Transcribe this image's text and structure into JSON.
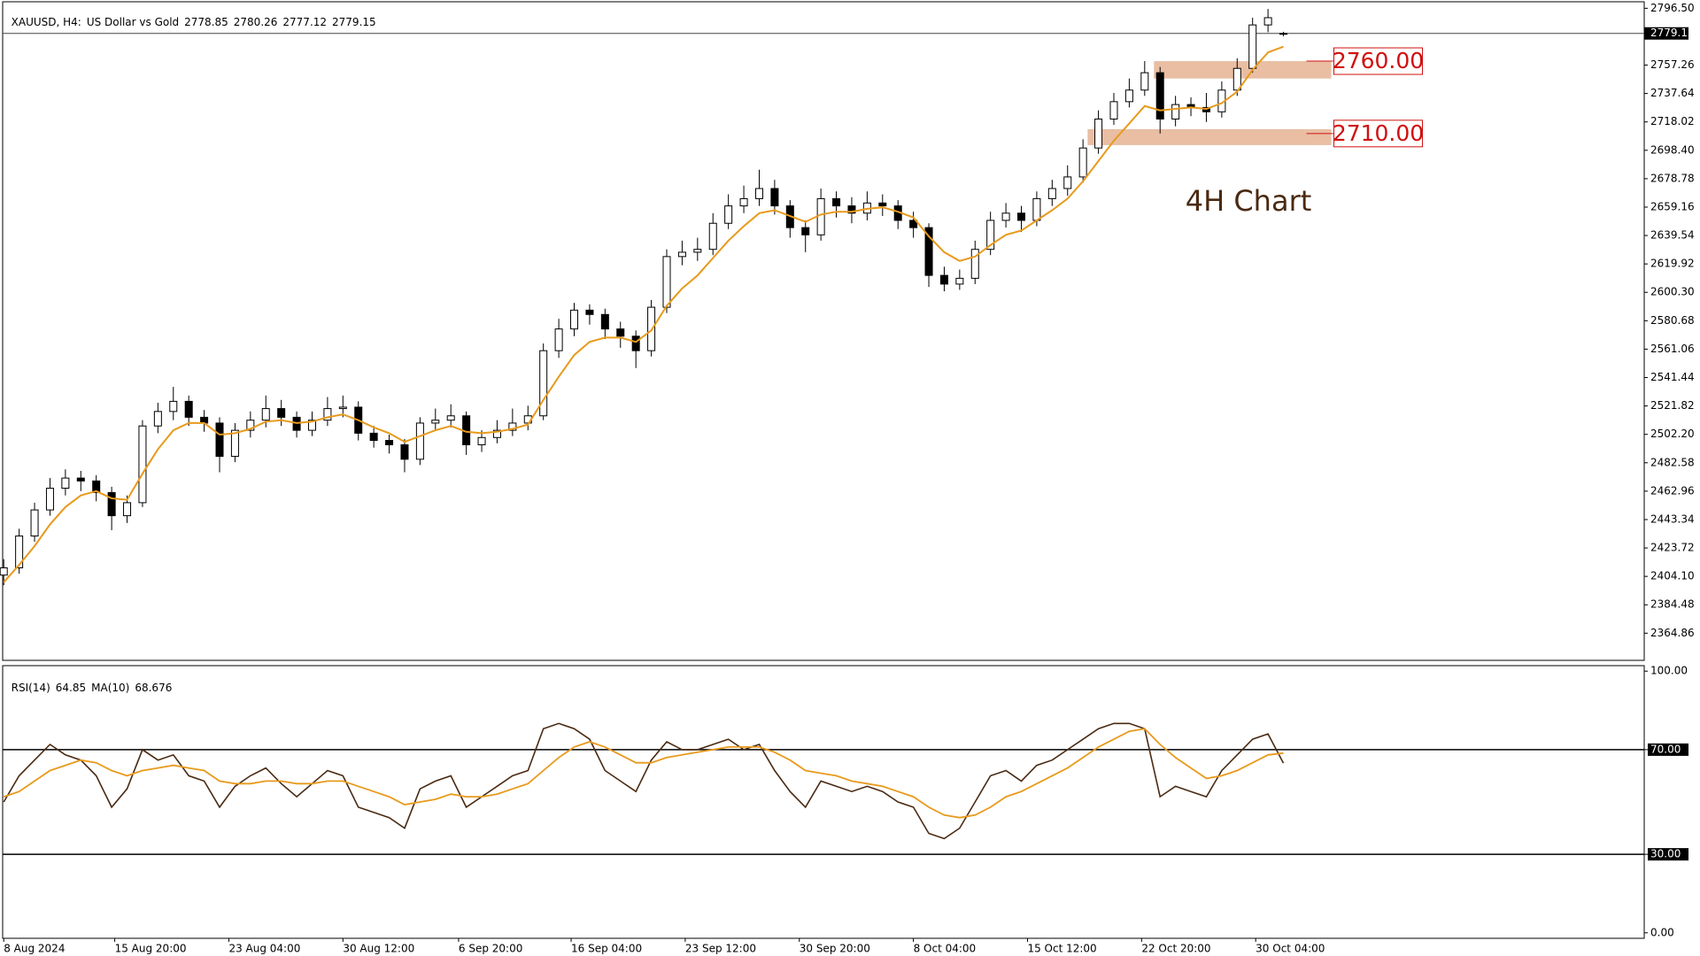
{
  "chart_data": {
    "type": "candlestick",
    "symbol": "XAUUSD, H4:",
    "description": "US Dollar vs Gold",
    "open": [
      2405,
      2410,
      2432,
      2450,
      2465,
      2472,
      2470,
      2462,
      2446,
      2455,
      2508,
      2518,
      2525,
      2514,
      2510,
      2487,
      2505,
      2512,
      2520,
      2514,
      2505,
      2512,
      2520,
      2521,
      2503,
      2498,
      2495,
      2485,
      2510,
      2512,
      2515,
      2495,
      2500,
      2505,
      2510,
      2515,
      2560,
      2575,
      2588,
      2585,
      2575,
      2570,
      2560,
      2590,
      2625,
      2628,
      2630,
      2648,
      2660,
      2665,
      2672,
      2660,
      2645,
      2640,
      2665,
      2660,
      2655,
      2662,
      2660,
      2650,
      2645,
      2612,
      2606,
      2610,
      2630,
      2650,
      2655,
      2650,
      2665,
      2672,
      2680,
      2700,
      2720,
      2732,
      2740,
      2752,
      2720,
      2730,
      2728,
      2725,
      2740,
      2755,
      2785,
      2778.85
    ],
    "high": [
      2416,
      2437,
      2455,
      2472,
      2478,
      2477,
      2474,
      2466,
      2460,
      2512,
      2524,
      2535,
      2529,
      2519,
      2514,
      2510,
      2518,
      2529,
      2526,
      2518,
      2518,
      2528,
      2529,
      2525,
      2508,
      2502,
      2499,
      2514,
      2520,
      2523,
      2518,
      2505,
      2512,
      2520,
      2522,
      2565,
      2582,
      2593,
      2592,
      2589,
      2580,
      2574,
      2595,
      2630,
      2636,
      2638,
      2655,
      2668,
      2674,
      2685,
      2678,
      2664,
      2650,
      2672,
      2670,
      2666,
      2670,
      2668,
      2664,
      2656,
      2648,
      2618,
      2616,
      2636,
      2656,
      2662,
      2660,
      2670,
      2678,
      2688,
      2706,
      2726,
      2738,
      2748,
      2760,
      2756,
      2736,
      2735,
      2738,
      2746,
      2762,
      2790,
      2796,
      2780.26
    ],
    "low": [
      2398,
      2406,
      2428,
      2446,
      2460,
      2463,
      2456,
      2436,
      2441,
      2452,
      2503,
      2512,
      2508,
      2504,
      2476,
      2483,
      2500,
      2507,
      2508,
      2500,
      2501,
      2508,
      2514,
      2498,
      2493,
      2489,
      2476,
      2481,
      2505,
      2507,
      2488,
      2490,
      2496,
      2501,
      2505,
      2512,
      2555,
      2570,
      2578,
      2568,
      2562,
      2548,
      2556,
      2586,
      2619,
      2622,
      2626,
      2644,
      2655,
      2660,
      2654,
      2638,
      2628,
      2636,
      2652,
      2648,
      2650,
      2653,
      2644,
      2638,
      2604,
      2601,
      2602,
      2606,
      2626,
      2645,
      2642,
      2646,
      2660,
      2667,
      2676,
      2696,
      2716,
      2728,
      2736,
      2710,
      2715,
      2722,
      2718,
      2721,
      2736,
      2752,
      2780,
      2777.12
    ],
    "close": [
      2410,
      2432,
      2450,
      2465,
      2472,
      2470,
      2462,
      2446,
      2455,
      2508,
      2518,
      2525,
      2514,
      2510,
      2487,
      2505,
      2512,
      2520,
      2514,
      2505,
      2512,
      2520,
      2521,
      2503,
      2498,
      2495,
      2485,
      2510,
      2512,
      2515,
      2495,
      2500,
      2505,
      2510,
      2515,
      2560,
      2575,
      2588,
      2585,
      2575,
      2570,
      2560,
      2590,
      2625,
      2628,
      2630,
      2648,
      2660,
      2665,
      2672,
      2660,
      2645,
      2640,
      2665,
      2660,
      2655,
      2662,
      2660,
      2650,
      2645,
      2612,
      2606,
      2610,
      2630,
      2650,
      2655,
      2650,
      2665,
      2672,
      2680,
      2700,
      2720,
      2732,
      2740,
      2752,
      2720,
      2730,
      2728,
      2725,
      2740,
      2755,
      2785,
      2790,
      2779.15
    ],
    "ma": {
      "color": "#e89a1c",
      "values": [
        2400,
        2412,
        2425,
        2440,
        2452,
        2460,
        2463,
        2458,
        2457,
        2475,
        2492,
        2505,
        2510,
        2510,
        2502,
        2503,
        2506,
        2511,
        2512,
        2510,
        2511,
        2514,
        2516,
        2512,
        2507,
        2503,
        2497,
        2501,
        2505,
        2508,
        2504,
        2503,
        2504,
        2506,
        2509,
        2526,
        2542,
        2557,
        2566,
        2569,
        2569,
        2566,
        2574,
        2591,
        2603,
        2612,
        2624,
        2636,
        2646,
        2655,
        2657,
        2653,
        2649,
        2654,
        2656,
        2656,
        2658,
        2659,
        2656,
        2652,
        2639,
        2628,
        2622,
        2625,
        2633,
        2640,
        2643,
        2650,
        2657,
        2665,
        2677,
        2691,
        2705,
        2717,
        2729,
        2726,
        2727,
        2728,
        2727,
        2731,
        2739,
        2754,
        2766,
        2770
      ]
    },
    "xlim": [
      -0.07,
      106.4
    ],
    "xticks": [
      {
        "value": 0,
        "label": "8 Aug 2024"
      },
      {
        "value": 7.2,
        "label": "15 Aug 20:00"
      },
      {
        "value": 14.6,
        "label": "23 Aug 04:00"
      },
      {
        "value": 22,
        "label": "30 Aug 12:00"
      },
      {
        "value": 29.5,
        "label": "6 Sep 20:00"
      },
      {
        "value": 36.8,
        "label": "16 Sep 04:00"
      },
      {
        "value": 44.2,
        "label": "23 Sep 12:00"
      },
      {
        "value": 51.6,
        "label": "30 Sep 20:00"
      },
      {
        "value": 59,
        "label": "8 Oct 04:00"
      },
      {
        "value": 66.4,
        "label": "15 Oct 12:00"
      },
      {
        "value": 73.8,
        "label": "22 Oct 20:00"
      },
      {
        "value": 81.2,
        "label": "30 Oct 04:00"
      }
    ],
    "ylim": [
      2346.1,
      2801.0
    ],
    "yticks": [
      {
        "value": 2796.5,
        "label": "2796.50"
      },
      {
        "value": 2757.26,
        "label": "2757.26"
      },
      {
        "value": 2737.64,
        "label": "2737.64"
      },
      {
        "value": 2718.02,
        "label": "2718.02"
      },
      {
        "value": 2698.4,
        "label": "2698.40"
      },
      {
        "value": 2678.78,
        "label": "2678.78"
      },
      {
        "value": 2659.16,
        "label": "2659.16"
      },
      {
        "value": 2639.54,
        "label": "2639.54"
      },
      {
        "value": 2619.92,
        "label": "2619.92"
      },
      {
        "value": 2600.3,
        "label": "2600.30"
      },
      {
        "value": 2580.68,
        "label": "2580.68"
      },
      {
        "value": 2561.06,
        "label": "2561.06"
      },
      {
        "value": 2541.44,
        "label": "2541.44"
      },
      {
        "value": 2521.82,
        "label": "2521.82"
      },
      {
        "value": 2502.2,
        "label": "2502.20"
      },
      {
        "value": 2482.58,
        "label": "2482.58"
      },
      {
        "value": 2462.96,
        "label": "2462.96"
      },
      {
        "value": 2443.34,
        "label": "2443.34"
      },
      {
        "value": 2423.72,
        "label": "2423.72"
      },
      {
        "value": 2404.1,
        "label": "2404.10"
      },
      {
        "value": 2384.48,
        "label": "2384.48"
      },
      {
        "value": 2364.86,
        "label": "2364.86"
      }
    ],
    "levels": [
      {
        "value": 2760,
        "label": "2760.00",
        "zone": [
          2748,
          2760
        ],
        "start": 74.6,
        "end": 86.1,
        "color": "#e9bea3"
      },
      {
        "value": 2710,
        "label": "2710.00",
        "zone": [
          2702,
          2713
        ],
        "start": 70.3,
        "end": 86.1,
        "color": "#e9bea3"
      }
    ],
    "annotation": "4H Chart",
    "indicator": {
      "type": "line",
      "label": "RSI(14)",
      "ma_label": "MA(10)",
      "color": "#4a2a12",
      "ma_color": "#e89a1c",
      "values": [
        50,
        60,
        66,
        72,
        68,
        66,
        60,
        48,
        55,
        70,
        66,
        68,
        60,
        58,
        48,
        56,
        60,
        63,
        57,
        52,
        57,
        62,
        60,
        48,
        46,
        44,
        40,
        55,
        58,
        60,
        48,
        52,
        56,
        60,
        62,
        78,
        80,
        78,
        74,
        62,
        58,
        54,
        66,
        73,
        70,
        70,
        72,
        74,
        70,
        72,
        62,
        54,
        48,
        58,
        56,
        54,
        56,
        54,
        50,
        48,
        38,
        36,
        40,
        50,
        60,
        62,
        58,
        64,
        66,
        70,
        74,
        78,
        80,
        80,
        78,
        52,
        56,
        54,
        52,
        62,
        68,
        74,
        76,
        64.85
      ],
      "ma_values": [
        52,
        54,
        58,
        62,
        64,
        66,
        65,
        62,
        60,
        62,
        63,
        64,
        63,
        62,
        58,
        57,
        57,
        58,
        58,
        57,
        57,
        58,
        58,
        56,
        54,
        52,
        49,
        50,
        51,
        53,
        52,
        52,
        53,
        55,
        57,
        62,
        67,
        71,
        73,
        71,
        68,
        65,
        65,
        67,
        68,
        69,
        70,
        71,
        71,
        71,
        69,
        66,
        62,
        61,
        60,
        58,
        57,
        56,
        54,
        52,
        48,
        45,
        44,
        45,
        48,
        52,
        54,
        57,
        60,
        63,
        67,
        71,
        74,
        77,
        78,
        72,
        67,
        63,
        59,
        60,
        62,
        65,
        68,
        68.676
      ],
      "ylim": [
        -2.1,
        102.1
      ],
      "yticks": [
        {
          "value": 100,
          "label": "100.00"
        },
        {
          "value": 70,
          "label": "70.00"
        },
        {
          "value": 30,
          "label": "30.00"
        },
        {
          "value": 0,
          "label": "0.00"
        }
      ],
      "levels": [
        70,
        30
      ]
    }
  }
}
